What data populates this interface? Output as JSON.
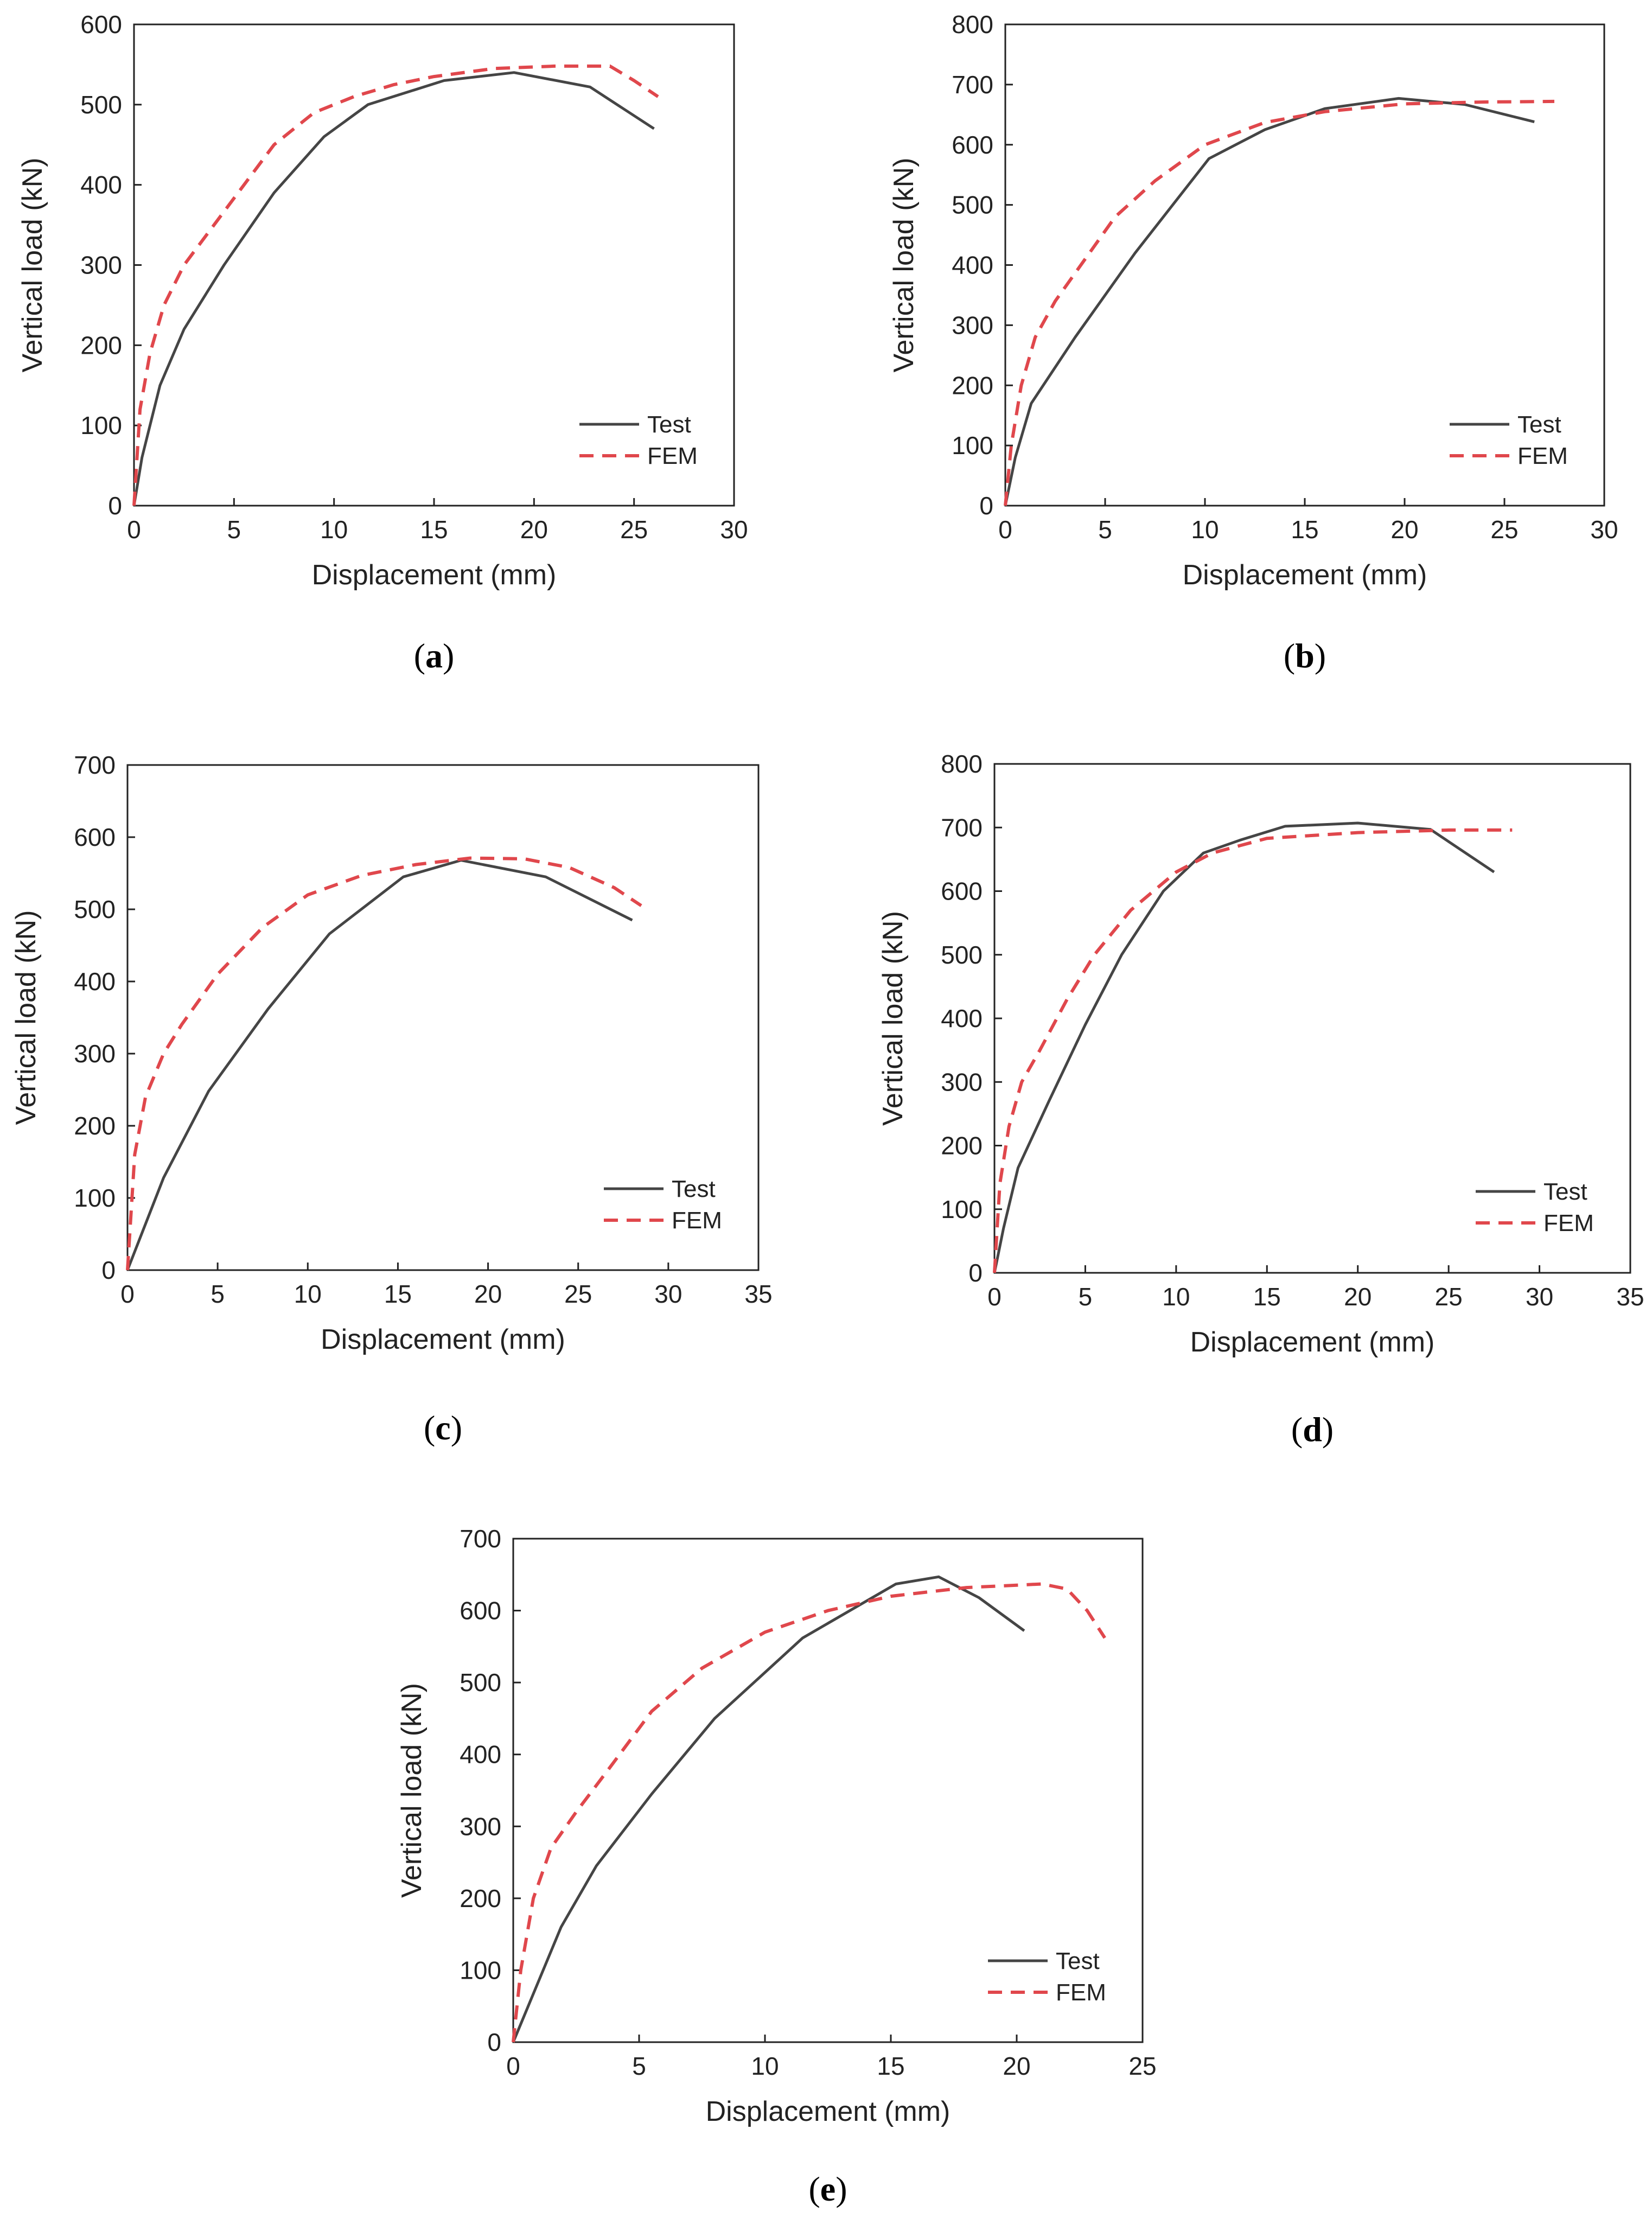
{
  "figure": {
    "colors": {
      "test": "#454545",
      "fem": "#e0474c",
      "axis": "#222222"
    }
  },
  "chart_data": [
    {
      "type": "line",
      "panel": "a",
      "caption": {
        "open": "(",
        "letter": "a",
        "close": ")"
      },
      "xlabel": "Displacement (mm)",
      "ylabel": "Vertical load (kN)",
      "xlim": [
        0,
        30
      ],
      "ylim": [
        0,
        600
      ],
      "xticks": [
        0,
        5,
        10,
        15,
        20,
        25,
        30
      ],
      "yticks": [
        0,
        100,
        200,
        300,
        400,
        500,
        600
      ],
      "legend": {
        "position": "bottom-right",
        "entries": [
          "Test",
          "FEM"
        ]
      },
      "series": [
        {
          "name": "Test",
          "style": "solid",
          "x": [
            0,
            0.4,
            1.3,
            2.5,
            4.5,
            7,
            9.5,
            11.7,
            15.5,
            19,
            22.8,
            26
          ],
          "y": [
            0,
            60,
            150,
            220,
            300,
            390,
            460,
            500,
            530,
            540,
            522,
            470
          ]
        },
        {
          "name": "FEM",
          "style": "dashed",
          "x": [
            0,
            0.3,
            0.8,
            1.5,
            2.5,
            4,
            5.5,
            7,
            9,
            11,
            13,
            15,
            18,
            21,
            23.8,
            25,
            26.2
          ],
          "y": [
            0,
            120,
            190,
            250,
            300,
            350,
            400,
            450,
            490,
            510,
            525,
            535,
            545,
            548,
            548,
            530,
            510
          ]
        }
      ]
    },
    {
      "type": "line",
      "panel": "b",
      "caption": {
        "open": "(",
        "letter": "b",
        "close": ")"
      },
      "xlabel": "Displacement (mm)",
      "ylabel": "Vertical load (kN)",
      "xlim": [
        0,
        30
      ],
      "ylim": [
        0,
        800
      ],
      "xticks": [
        0,
        5,
        10,
        15,
        20,
        25,
        30
      ],
      "yticks": [
        0,
        100,
        200,
        300,
        400,
        500,
        600,
        700,
        800
      ],
      "legend": {
        "position": "bottom-right",
        "entries": [
          "Test",
          "FEM"
        ]
      },
      "series": [
        {
          "name": "Test",
          "style": "solid",
          "x": [
            0,
            0.5,
            1.3,
            3.5,
            6.5,
            10.2,
            13,
            16,
            19.7,
            23,
            26.5
          ],
          "y": [
            0,
            80,
            170,
            280,
            420,
            577,
            625,
            660,
            677,
            667,
            638
          ]
        },
        {
          "name": "FEM",
          "style": "dashed",
          "x": [
            0,
            0.3,
            0.8,
            1.5,
            2.5,
            4,
            5.5,
            7.5,
            10,
            13,
            16,
            20,
            24,
            27.5
          ],
          "y": [
            0,
            100,
            200,
            280,
            340,
            410,
            480,
            540,
            600,
            637,
            655,
            668,
            671,
            672
          ]
        }
      ]
    },
    {
      "type": "line",
      "panel": "c",
      "caption": {
        "open": "(",
        "letter": "c",
        "close": ")"
      },
      "xlabel": "Displacement (mm)",
      "ylabel": "Vertical load (kN)",
      "xlim": [
        0,
        35
      ],
      "ylim": [
        0,
        700
      ],
      "xticks": [
        0,
        5,
        10,
        15,
        20,
        25,
        30,
        35
      ],
      "yticks": [
        0,
        100,
        200,
        300,
        400,
        500,
        600,
        700
      ],
      "legend": {
        "position": "bottom-right",
        "entries": [
          "Test",
          "FEM"
        ]
      },
      "series": [
        {
          "name": "Test",
          "style": "solid",
          "x": [
            0,
            2,
            4.5,
            7.8,
            11.2,
            15.3,
            18.5,
            23.2,
            28
          ],
          "y": [
            0,
            128,
            248,
            362,
            466,
            545,
            568,
            545,
            485
          ]
        },
        {
          "name": "FEM",
          "style": "dashed",
          "x": [
            0,
            0.4,
            1,
            2,
            3,
            5,
            7.5,
            10,
            13,
            16,
            19,
            22,
            24.5,
            27,
            28.5
          ],
          "y": [
            0,
            160,
            240,
            300,
            340,
            410,
            475,
            520,
            547,
            562,
            571,
            570,
            558,
            530,
            505
          ]
        }
      ]
    },
    {
      "type": "line",
      "panel": "d",
      "caption": {
        "open": "(",
        "letter": "d",
        "close": ")"
      },
      "xlabel": "Displacement (mm)",
      "ylabel": "Vertical load (kN)",
      "xlim": [
        0,
        35
      ],
      "ylim": [
        0,
        800
      ],
      "xticks": [
        0,
        5,
        10,
        15,
        20,
        25,
        30,
        35
      ],
      "yticks": [
        0,
        100,
        200,
        300,
        400,
        500,
        600,
        700,
        800
      ],
      "legend": {
        "position": "bottom-right",
        "entries": [
          "Test",
          "FEM"
        ]
      },
      "series": [
        {
          "name": "Test",
          "style": "solid",
          "x": [
            0,
            0.5,
            1.3,
            3,
            5,
            7,
            9.3,
            11.5,
            13.5,
            16,
            20,
            24,
            27.5
          ],
          "y": [
            0,
            70,
            165,
            270,
            390,
            500,
            600,
            660,
            680,
            702,
            707,
            697,
            630
          ]
        },
        {
          "name": "FEM",
          "style": "dashed",
          "x": [
            0,
            0.3,
            0.8,
            1.5,
            2.5,
            4,
            5.5,
            7.5,
            10,
            12,
            15,
            20,
            25,
            28.5
          ],
          "y": [
            0,
            140,
            230,
            300,
            350,
            430,
            500,
            570,
            630,
            660,
            683,
            692,
            696,
            696
          ]
        }
      ]
    },
    {
      "type": "line",
      "panel": "e",
      "caption": {
        "open": "(",
        "letter": "e",
        "close": ")"
      },
      "xlabel": "Displacement (mm)",
      "ylabel": "Vertical load (kN)",
      "xlim": [
        0,
        25
      ],
      "ylim": [
        0,
        700
      ],
      "xticks": [
        0,
        5,
        10,
        15,
        20,
        25
      ],
      "yticks": [
        0,
        100,
        200,
        300,
        400,
        500,
        600,
        700
      ],
      "legend": {
        "position": "bottom-right",
        "entries": [
          "Test",
          "FEM"
        ]
      },
      "series": [
        {
          "name": "Test",
          "style": "solid",
          "x": [
            0,
            1.9,
            3.3,
            5.5,
            8,
            11.5,
            15.2,
            16.9,
            18.5,
            20.3
          ],
          "y": [
            0,
            160,
            245,
            345,
            450,
            562,
            637,
            647,
            618,
            572
          ]
        },
        {
          "name": "FEM",
          "style": "dashed",
          "x": [
            0,
            0.3,
            0.8,
            1.5,
            2.5,
            3.8,
            5.5,
            7.5,
            10,
            12.5,
            15,
            18,
            21,
            22,
            22.8,
            23.5
          ],
          "y": [
            0,
            100,
            200,
            270,
            320,
            380,
            460,
            520,
            570,
            600,
            620,
            632,
            637,
            630,
            600,
            562
          ]
        }
      ]
    }
  ]
}
